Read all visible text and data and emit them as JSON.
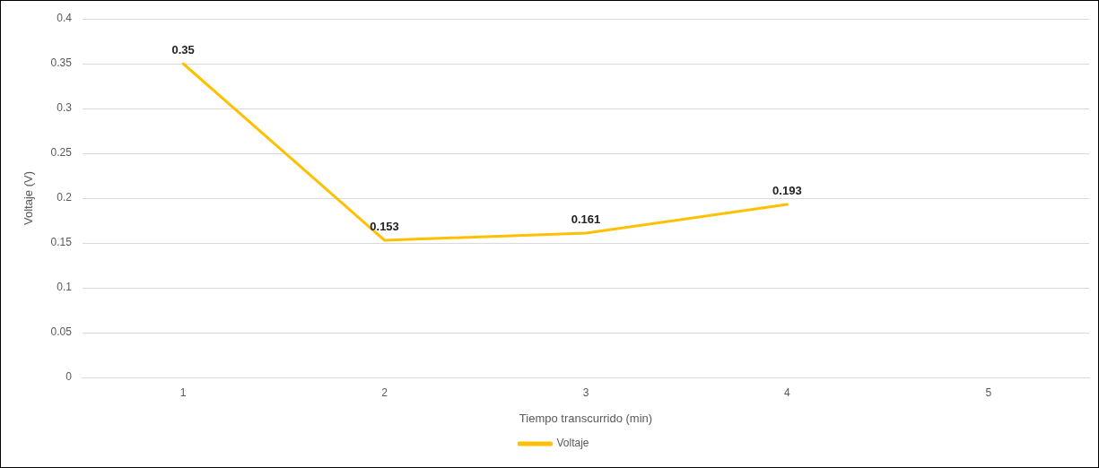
{
  "chart_data": {
    "type": "line",
    "xlabel": "Tiempo transcurrido (min)",
    "ylabel": "Voltaje (V)",
    "categories": [
      "1",
      "2",
      "3",
      "4",
      "5"
    ],
    "series": [
      {
        "name": "Voltaje",
        "color": "#ffc000",
        "values": [
          0.35,
          0.153,
          0.161,
          0.193,
          null
        ]
      }
    ],
    "ylim": [
      0,
      0.4
    ],
    "yticks": [
      0,
      0.05,
      0.1,
      0.15,
      0.2,
      0.25,
      0.3,
      0.35,
      0.4
    ],
    "grid": "y",
    "legend": "bottom",
    "marker": "none",
    "line_style": "solid",
    "data_labels": true
  }
}
